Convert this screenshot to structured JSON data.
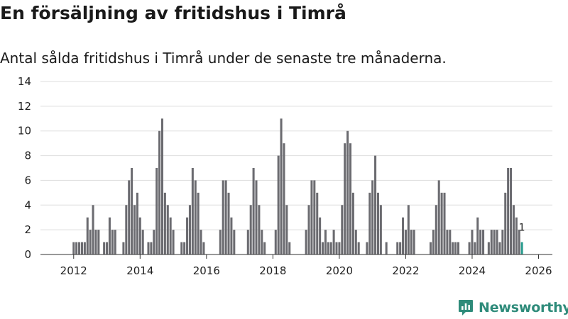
{
  "title": "En försäljning av fritidshus i Timrå",
  "subtitle": "Antal sålda fritidshus i Timrå under de senaste tre månaderna.",
  "brand": {
    "name": "Newsworthy",
    "icon": "newsworthy-logo-icon"
  },
  "colors": {
    "bar": "#6b6b70",
    "highlight": "#2a9d8f",
    "grid": "#dddddd",
    "axis": "#333333",
    "brand": "#2e8b7a"
  },
  "chart_data": {
    "type": "bar",
    "title": "En försäljning av fritidshus i Timrå",
    "xlabel": "",
    "ylabel": "",
    "ylim": [
      0,
      14
    ],
    "yticks": [
      0,
      2,
      4,
      6,
      8,
      10,
      12,
      14
    ],
    "xticks": [
      "2012",
      "2014",
      "2016",
      "2018",
      "2020",
      "2022",
      "2024",
      "2026"
    ],
    "xlim": [
      "2011-01",
      "2026-06"
    ],
    "grid": true,
    "series": [
      {
        "values": [
          {
            "x": "2012-01",
            "y": 1
          },
          {
            "x": "2012-02",
            "y": 1
          },
          {
            "x": "2012-03",
            "y": 1
          },
          {
            "x": "2012-04",
            "y": 1
          },
          {
            "x": "2012-05",
            "y": 1
          },
          {
            "x": "2012-06",
            "y": 3
          },
          {
            "x": "2012-07",
            "y": 2
          },
          {
            "x": "2012-08",
            "y": 4
          },
          {
            "x": "2012-09",
            "y": 2
          },
          {
            "x": "2012-10",
            "y": 2
          },
          {
            "x": "2012-12",
            "y": 1
          },
          {
            "x": "2013-01",
            "y": 1
          },
          {
            "x": "2013-02",
            "y": 3
          },
          {
            "x": "2013-03",
            "y": 2
          },
          {
            "x": "2013-04",
            "y": 2
          },
          {
            "x": "2013-07",
            "y": 1
          },
          {
            "x": "2013-08",
            "y": 4
          },
          {
            "x": "2013-09",
            "y": 6
          },
          {
            "x": "2013-10",
            "y": 7
          },
          {
            "x": "2013-11",
            "y": 4
          },
          {
            "x": "2013-12",
            "y": 5
          },
          {
            "x": "2014-01",
            "y": 3
          },
          {
            "x": "2014-02",
            "y": 2
          },
          {
            "x": "2014-04",
            "y": 1
          },
          {
            "x": "2014-05",
            "y": 1
          },
          {
            "x": "2014-06",
            "y": 2
          },
          {
            "x": "2014-07",
            "y": 7
          },
          {
            "x": "2014-08",
            "y": 10
          },
          {
            "x": "2014-09",
            "y": 11
          },
          {
            "x": "2014-10",
            "y": 5
          },
          {
            "x": "2014-11",
            "y": 4
          },
          {
            "x": "2014-12",
            "y": 3
          },
          {
            "x": "2015-01",
            "y": 2
          },
          {
            "x": "2015-04",
            "y": 1
          },
          {
            "x": "2015-05",
            "y": 1
          },
          {
            "x": "2015-06",
            "y": 3
          },
          {
            "x": "2015-07",
            "y": 4
          },
          {
            "x": "2015-08",
            "y": 7
          },
          {
            "x": "2015-09",
            "y": 6
          },
          {
            "x": "2015-10",
            "y": 5
          },
          {
            "x": "2015-11",
            "y": 2
          },
          {
            "x": "2015-12",
            "y": 1
          },
          {
            "x": "2016-06",
            "y": 2
          },
          {
            "x": "2016-07",
            "y": 6
          },
          {
            "x": "2016-08",
            "y": 6
          },
          {
            "x": "2016-09",
            "y": 5
          },
          {
            "x": "2016-10",
            "y": 3
          },
          {
            "x": "2016-11",
            "y": 2
          },
          {
            "x": "2017-04",
            "y": 2
          },
          {
            "x": "2017-05",
            "y": 4
          },
          {
            "x": "2017-06",
            "y": 7
          },
          {
            "x": "2017-07",
            "y": 6
          },
          {
            "x": "2017-08",
            "y": 4
          },
          {
            "x": "2017-09",
            "y": 2
          },
          {
            "x": "2017-10",
            "y": 1
          },
          {
            "x": "2018-02",
            "y": 2
          },
          {
            "x": "2018-03",
            "y": 8
          },
          {
            "x": "2018-04",
            "y": 11
          },
          {
            "x": "2018-05",
            "y": 9
          },
          {
            "x": "2018-06",
            "y": 4
          },
          {
            "x": "2018-07",
            "y": 1
          },
          {
            "x": "2019-01",
            "y": 2
          },
          {
            "x": "2019-02",
            "y": 4
          },
          {
            "x": "2019-03",
            "y": 6
          },
          {
            "x": "2019-04",
            "y": 6
          },
          {
            "x": "2019-05",
            "y": 5
          },
          {
            "x": "2019-06",
            "y": 3
          },
          {
            "x": "2019-07",
            "y": 1
          },
          {
            "x": "2019-08",
            "y": 2
          },
          {
            "x": "2019-09",
            "y": 1
          },
          {
            "x": "2019-10",
            "y": 1
          },
          {
            "x": "2019-11",
            "y": 2
          },
          {
            "x": "2019-12",
            "y": 1
          },
          {
            "x": "2020-01",
            "y": 1
          },
          {
            "x": "2020-02",
            "y": 4
          },
          {
            "x": "2020-03",
            "y": 9
          },
          {
            "x": "2020-04",
            "y": 10
          },
          {
            "x": "2020-05",
            "y": 9
          },
          {
            "x": "2020-06",
            "y": 5
          },
          {
            "x": "2020-07",
            "y": 2
          },
          {
            "x": "2020-08",
            "y": 1
          },
          {
            "x": "2020-11",
            "y": 1
          },
          {
            "x": "2020-12",
            "y": 5
          },
          {
            "x": "2021-01",
            "y": 6
          },
          {
            "x": "2021-02",
            "y": 8
          },
          {
            "x": "2021-03",
            "y": 5
          },
          {
            "x": "2021-04",
            "y": 4
          },
          {
            "x": "2021-06",
            "y": 1
          },
          {
            "x": "2021-10",
            "y": 1
          },
          {
            "x": "2021-11",
            "y": 1
          },
          {
            "x": "2021-12",
            "y": 3
          },
          {
            "x": "2022-01",
            "y": 2
          },
          {
            "x": "2022-02",
            "y": 4
          },
          {
            "x": "2022-03",
            "y": 2
          },
          {
            "x": "2022-04",
            "y": 2
          },
          {
            "x": "2022-10",
            "y": 1
          },
          {
            "x": "2022-11",
            "y": 2
          },
          {
            "x": "2022-12",
            "y": 4
          },
          {
            "x": "2023-01",
            "y": 6
          },
          {
            "x": "2023-02",
            "y": 5
          },
          {
            "x": "2023-03",
            "y": 5
          },
          {
            "x": "2023-04",
            "y": 2
          },
          {
            "x": "2023-05",
            "y": 2
          },
          {
            "x": "2023-06",
            "y": 1
          },
          {
            "x": "2023-07",
            "y": 1
          },
          {
            "x": "2023-08",
            "y": 1
          },
          {
            "x": "2023-12",
            "y": 1
          },
          {
            "x": "2024-01",
            "y": 2
          },
          {
            "x": "2024-02",
            "y": 1
          },
          {
            "x": "2024-03",
            "y": 3
          },
          {
            "x": "2024-04",
            "y": 2
          },
          {
            "x": "2024-05",
            "y": 2
          },
          {
            "x": "2024-07",
            "y": 1
          },
          {
            "x": "2024-08",
            "y": 2
          },
          {
            "x": "2024-09",
            "y": 2
          },
          {
            "x": "2024-10",
            "y": 2
          },
          {
            "x": "2024-11",
            "y": 1
          },
          {
            "x": "2024-12",
            "y": 2
          },
          {
            "x": "2025-01",
            "y": 5
          },
          {
            "x": "2025-02",
            "y": 7
          },
          {
            "x": "2025-03",
            "y": 7
          },
          {
            "x": "2025-04",
            "y": 4
          },
          {
            "x": "2025-05",
            "y": 3
          },
          {
            "x": "2025-06",
            "y": 2
          },
          {
            "x": "2025-07",
            "y": 1
          }
        ]
      }
    ],
    "highlight": {
      "x": "2025-07",
      "y": 1,
      "label": "1"
    }
  }
}
